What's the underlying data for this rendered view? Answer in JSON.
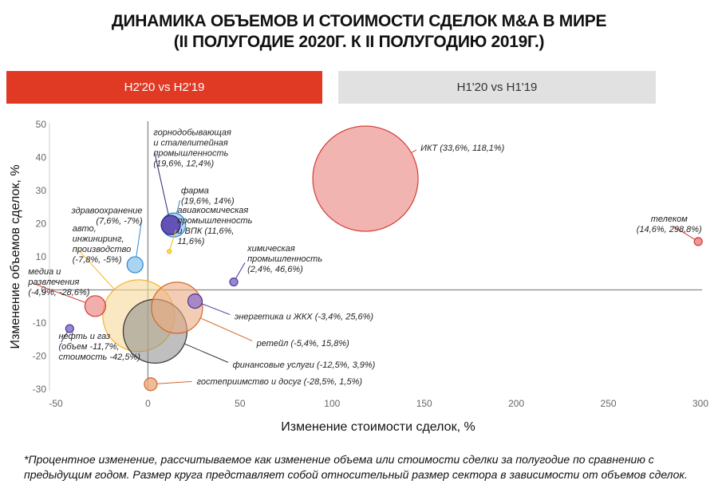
{
  "title_line1": "ДИНАМИКА ОБЪЕМОВ И СТОИМОСТИ СДЕЛОК M&A В МИРЕ",
  "title_line2": "(II ПОЛУГОДИЕ 2020Г. К II ПОЛУГОДИЮ 2019Г.)",
  "tabs": [
    {
      "label": "H2'20 vs H2'19",
      "active": true
    },
    {
      "label": "H1'20 vs H1'19",
      "active": false
    }
  ],
  "footnote": "*Процентное изменение, рассчитываемое как изменение объема или стоимости сделки за полугодие по сравнению с предыдущим годом. Размер круга представляет собой относительный размер сектора в зависимости от объемов сделок.",
  "colors": {
    "accent": "#e03a25",
    "tab_inactive": "#e1e1e1"
  },
  "chart_data": {
    "type": "scatter",
    "subtype": "bubble",
    "xlabel": "Изменение стоимости сделок, %",
    "ylabel": "Изменение объемов сделок, %",
    "xlim": [
      -50,
      300
    ],
    "ylim": [
      -30,
      50
    ],
    "xticks": [
      -50,
      0,
      50,
      100,
      150,
      200,
      250,
      300
    ],
    "yticks": [
      -30,
      -20,
      -10,
      0,
      10,
      20,
      30,
      40,
      50
    ],
    "grid": false,
    "reference_lines": {
      "x": 0,
      "y": 0
    },
    "points": [
      {
        "label": [
          "ИКТ (33,6%, 118,1%)"
        ],
        "x": 118.1,
        "y": 33.6,
        "size": 66,
        "fill": "#eb8c86",
        "stroke": "#d23c34",
        "opacity": 0.65,
        "label_anchor": "start",
        "lx": 148,
        "ly": 43
      },
      {
        "label": [
          "телеком",
          "(14,6%, 298,8%)"
        ],
        "x": 298.8,
        "y": 14.6,
        "size": 5,
        "fill": "#eb8c86",
        "stroke": "#d23c34",
        "opacity": 0.9,
        "label_anchor": "middle",
        "lx": 283,
        "ly": 20
      },
      {
        "label": [
          "горнодобывающая",
          "и сталелитейная",
          "промышленность",
          "(19,6%, 12,4%)"
        ],
        "x": 12.4,
        "y": 19.6,
        "size": 12,
        "fill": "#5b45b0",
        "stroke": "#2e2278",
        "opacity": 0.9,
        "label_anchor": "start",
        "lx": 3,
        "ly": 43
      },
      {
        "label": [
          "фарма",
          "(19,6%, 14%)"
        ],
        "x": 14,
        "y": 19.6,
        "size": 15,
        "fill": "#8fc6ef",
        "stroke": "#2e86d1",
        "opacity": 0.7,
        "label_anchor": "start",
        "lx": 18,
        "ly": 28.5
      },
      {
        "label": [
          "здравоохранение",
          "(7,6%, -7%)"
        ],
        "x": -7,
        "y": 7.6,
        "size": 10,
        "fill": "#8fc6ef",
        "stroke": "#2e86d1",
        "opacity": 0.75,
        "label_anchor": "end",
        "lx": -3,
        "ly": 22.5
      },
      {
        "label": [
          "авиакосмическая",
          "промышленность",
          "и ВПК (11,6%,",
          "11,6%)"
        ],
        "x": 11.6,
        "y": 11.6,
        "size": 2.5,
        "fill": "#fad67a",
        "stroke": "#f5b800",
        "opacity": 0.9,
        "label_anchor": "start",
        "lx": 16,
        "ly": 19.5
      },
      {
        "label": [
          "авто,",
          "инжиниринг,",
          "производство",
          "(-7,8%, -5%)"
        ],
        "x": -5,
        "y": -7.8,
        "size": 45,
        "fill": "#f7d99a",
        "stroke": "#f2b52e",
        "opacity": 0.6,
        "label_anchor": "start",
        "lx": -41,
        "ly": 14
      },
      {
        "label": [
          "химическая",
          "промышленность",
          "(2,4%, 46,6%)"
        ],
        "x": 46.6,
        "y": 2.4,
        "size": 5,
        "fill": "#8e78d0",
        "stroke": "#4b3596",
        "opacity": 0.9,
        "label_anchor": "start",
        "lx": 54,
        "ly": 9.5
      },
      {
        "label": [
          "медиа и",
          "развлечения",
          "(-4,9%, -28,6%)"
        ],
        "x": -28.6,
        "y": -4.9,
        "size": 13,
        "fill": "#eb8c86",
        "stroke": "#d23c34",
        "opacity": 0.7,
        "label_anchor": "start",
        "lx": -65,
        "ly": 2.5
      },
      {
        "label": [
          "энергетика и ЖКХ (-3,4%, 25,6%)"
        ],
        "x": 25.6,
        "y": -3.4,
        "size": 9,
        "fill": "#9a7bc7",
        "stroke": "#4b3596",
        "opacity": 0.85,
        "label_anchor": "start",
        "lx": 47,
        "ly": -8
      },
      {
        "label": [
          "ретейл (-5,4%, 15,8%)"
        ],
        "x": 15.8,
        "y": -5.4,
        "size": 32,
        "fill": "#ebab80",
        "stroke": "#d2652a",
        "opacity": 0.6,
        "label_anchor": "start",
        "lx": 59,
        "ly": -16
      },
      {
        "label": [
          "финансовые услуги (-12,5%, 3,9%)"
        ],
        "x": 3.9,
        "y": -12.5,
        "size": 40,
        "fill": "#8a8a8a",
        "stroke": "#333333",
        "opacity": 0.55,
        "label_anchor": "start",
        "lx": 46,
        "ly": -22.5
      },
      {
        "label": [
          "гостеприимство и досуг (-28,5%, 1,5%)"
        ],
        "x": 1.5,
        "y": -28.5,
        "size": 8,
        "fill": "#ebab80",
        "stroke": "#d2652a",
        "opacity": 0.8,
        "label_anchor": "start",
        "lx": 26.5,
        "ly": -27.6
      },
      {
        "label": [
          "нефть и газ",
          "(объем -11,7%,",
          "стоимость -42,5%)"
        ],
        "x": -42.5,
        "y": -11.7,
        "size": 5,
        "fill": "#8e78d0",
        "stroke": "#4b3596",
        "opacity": 0.9,
        "label_anchor": "start",
        "lx": -48.5,
        "ly": -17
      }
    ]
  }
}
